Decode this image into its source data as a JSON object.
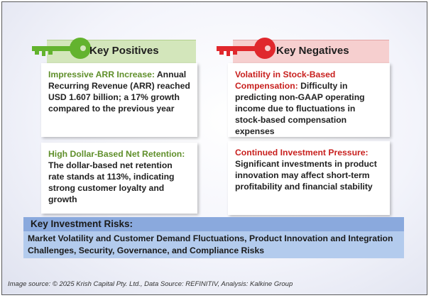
{
  "positives": {
    "header": "Key Positives",
    "items": [
      {
        "title": "Impressive ARR Increase:",
        "body": "Annual Recurring Revenue (ARR) reached USD 1.607 billion; a 17% growth compared to the previous year"
      },
      {
        "title": "High Dollar-Based Net Retention:",
        "body": "The dollar-based net retention rate stands at 113%, indicating strong customer loyalty and growth"
      }
    ]
  },
  "negatives": {
    "header": "Key Negatives",
    "items": [
      {
        "title": "Volatility in Stock-Based Compensation:",
        "body": "Difficulty in predicting non-GAAP operating income due to fluctuations in stock-based compensation expenses"
      },
      {
        "title": "Continued Investment Pressure:",
        "body": "Significant investments in product innovation may affect short-term profitability and financial stability"
      }
    ]
  },
  "risks": {
    "header": "Key Investment Risks:",
    "body": "Market Volatility and Customer Demand Fluctuations, Product Innovation and Integration Challenges, Security, Governance, and Compliance Risks"
  },
  "footer": "Image source: © 2025 Krish Capital Pty. Ltd., Data Source: REFINITIV, Analysis: Kalkine Group",
  "colors": {
    "positive_accent": "#63b32e",
    "negative_accent": "#e0282d",
    "risk_header": "#8aa9dd",
    "risk_body": "#b3cbed"
  },
  "icons": {
    "positive": "key-icon",
    "negative": "key-icon"
  }
}
